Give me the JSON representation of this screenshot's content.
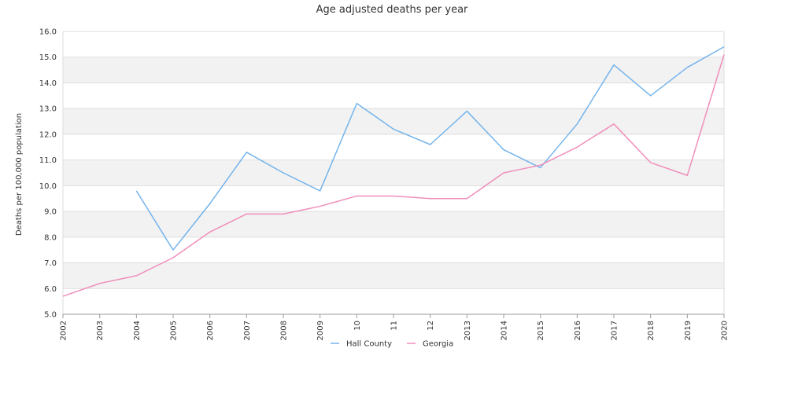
{
  "chart_data": {
    "type": "line",
    "title": "Age adjusted deaths per year",
    "xlabel": "",
    "ylabel": "Deaths per 100,000 population",
    "categories": [
      "2002",
      "2003",
      "2004",
      "2005",
      "2006",
      "2007",
      "2008",
      "2009",
      "10",
      "11",
      "12",
      "2013",
      "2014",
      "2015",
      "2016",
      "2017",
      "2018",
      "2019",
      "2020"
    ],
    "ylim": [
      5.0,
      16.0
    ],
    "yticks": [
      "5.0",
      "6.0",
      "7.0",
      "8.0",
      "9.0",
      "10.0",
      "11.0",
      "12.0",
      "13.0",
      "14.0",
      "15.0",
      "16.0"
    ],
    "grid": "horizontal alternating bands",
    "legend_position": "bottom",
    "series": [
      {
        "name": "Hall County",
        "color": "#74b4ec",
        "values": [
          null,
          null,
          9.8,
          7.5,
          9.3,
          11.3,
          10.5,
          9.8,
          13.2,
          12.2,
          11.6,
          12.9,
          11.4,
          10.7,
          12.4,
          14.7,
          13.5,
          14.6,
          15.4
        ]
      },
      {
        "name": "Georgia",
        "color": "#f08fbb",
        "values": [
          5.7,
          6.2,
          6.5,
          7.2,
          8.2,
          8.9,
          8.9,
          9.2,
          9.6,
          9.6,
          9.5,
          9.5,
          10.5,
          10.8,
          11.5,
          12.4,
          10.9,
          10.4,
          15.1
        ]
      }
    ]
  }
}
